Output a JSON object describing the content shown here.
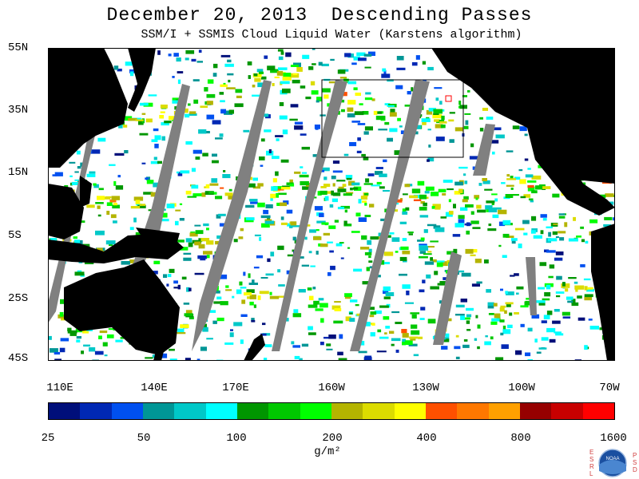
{
  "title": "December 20, 2013  Descending Passes",
  "subtitle": "SSM/I + SSMIS Cloud Liquid Water (Karstens algorithm)",
  "lat_labels": [
    "55N",
    "35N",
    "15N",
    "5S",
    "25S",
    "45S"
  ],
  "lon_labels": [
    "110E",
    "140E",
    "170E",
    "160W",
    "130W",
    "100W",
    "70W"
  ],
  "colorbar": {
    "tick_labels": [
      "25",
      "50",
      "100",
      "200",
      "400",
      "800",
      "1600"
    ],
    "units": "g/m²",
    "colors": [
      "#000f7a",
      "#0028b4",
      "#0050f0",
      "#009696",
      "#00c8c8",
      "#00ffff",
      "#009600",
      "#00c800",
      "#00ff00",
      "#b4b400",
      "#dcdc00",
      "#ffff00",
      "#ff5000",
      "#ff7800",
      "#ffa000",
      "#960000",
      "#c80000",
      "#ff0000"
    ]
  },
  "map_colors": {
    "land": "#000000",
    "ocean_clear": "#ffffff",
    "swath_gap": "#808080"
  },
  "logo": {
    "left_text": "ESRL",
    "right_text": "PSD",
    "center_text": "NOAA"
  }
}
